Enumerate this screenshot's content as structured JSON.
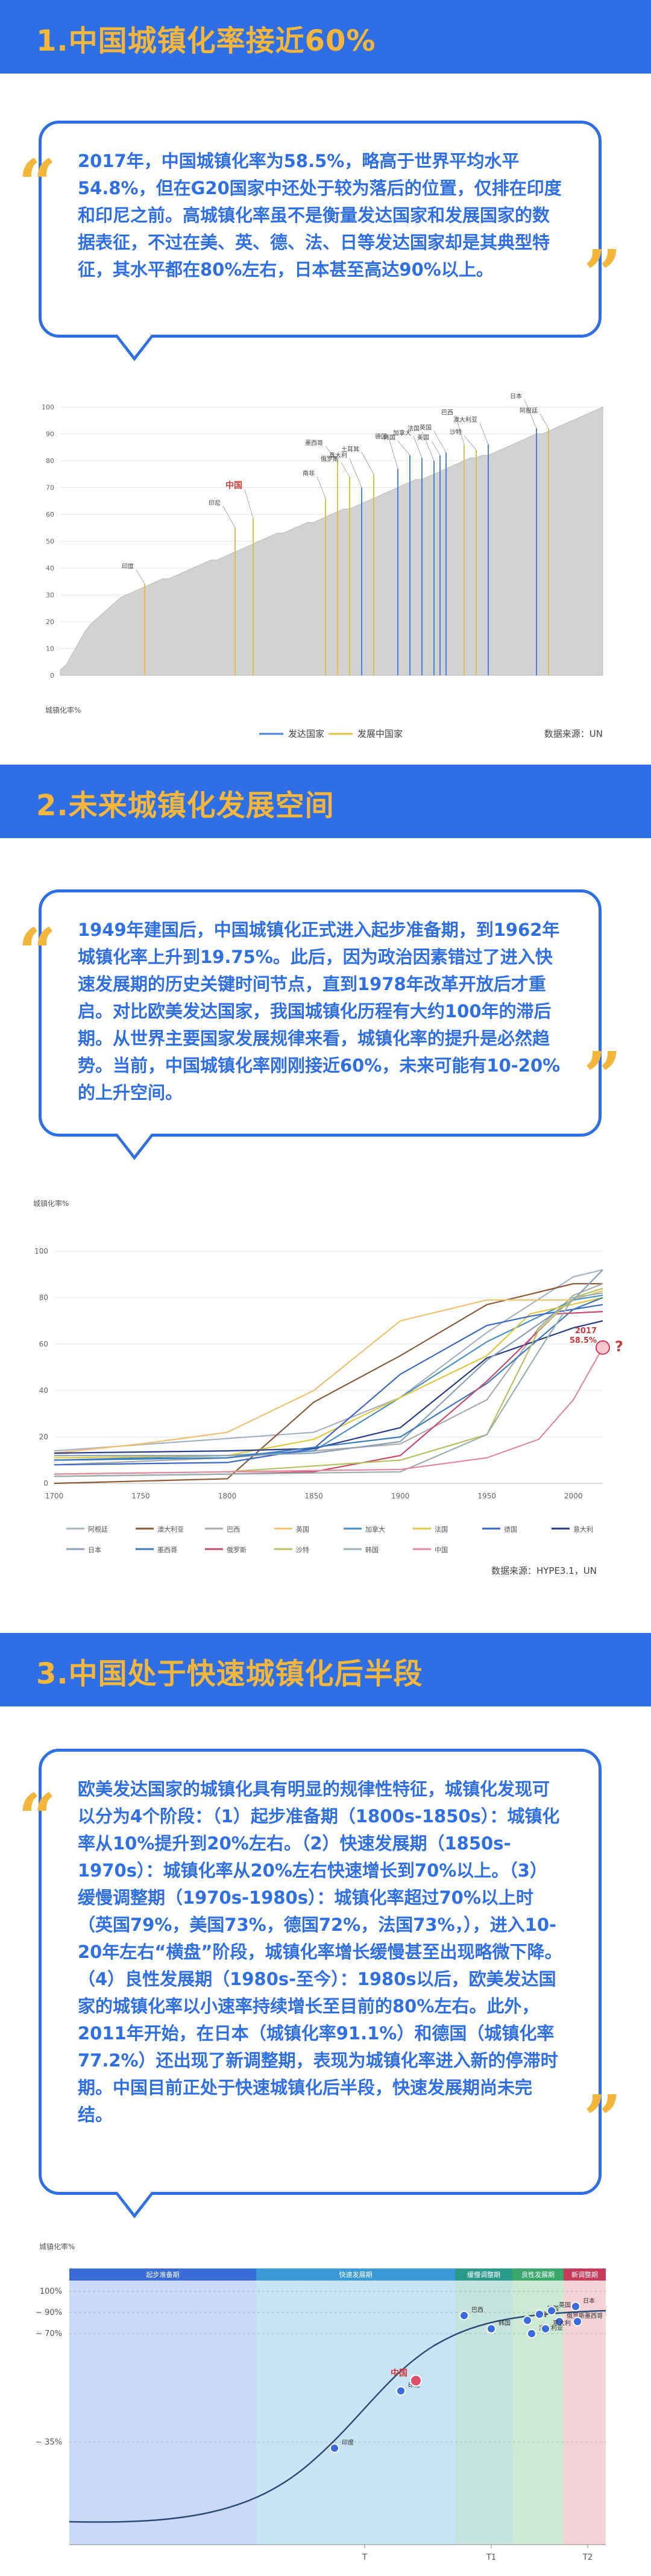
{
  "section1": {
    "title": "1.中国城镇化率接近60%",
    "text": "2017年，中国城镇化率为58.5%，略高于世界平均水平54.8%，但在G20国家中还处于较为落后的位置，仅排在印度和印尼之前。高城镇化率虽不是衡量发达国家和发展国家的数据表征，不过在美、英、德、法、日等发达国家却是其典型特征，其水平都在80%左右，日本甚至高达90%以上。",
    "quote_open": "“",
    "quote_close": "”"
  },
  "section2": {
    "title": "2.未来城镇化发展空间",
    "text": "1949年建国后，中国城镇化正式进入起步准备期，到1962年城镇化率上升到19.75%。此后，因为政治因素错过了进入快速发展期的历史关键时间节点，直到1978年改革开放后才重启。对比欧美发达国家，我国城镇化历程有大约100年的滞后期。从世界主要国家发展规律来看，城镇化率的提升是必然趋势。当前，中国城镇化率刚刚接近60%，未来可能有10-20%的上升空间。",
    "quote_open": "“",
    "quote_close": "”"
  },
  "section3": {
    "title": "3.中国处于快速城镇化后半段",
    "text": "欧美发达国家的城镇化具有明显的规律性特征，城镇化发现可以分为4个阶段：（1）起步准备期（1800s-1850s）：城镇化率从10%提升到20%左右。（2）快速发展期（1850s-1970s）：城镇化率从20%左右快速增长到70%以上。（3）缓慢调整期（1970s-1980s）：城镇化率超过70%以上时（英国79%，美国73%，德国72%，法国73%，），进入10-20年左右“横盘”阶段，城镇化率增长缓慢甚至出现略微下降。（4）良性发展期（1980s-至今）：1980s以后，欧美发达国家的城镇化率以小速率持续增长至目前的80%左右。此外，2011年开始，在日本（城镇化率91.1%）和德国（城镇化率77.2%）还出现了新调整期，表现为城镇化率进入新的停滞时期。中国目前正处于快速城镇化后半段，快速发展期尚未完结。",
    "quote_open": "“",
    "quote_close": "”"
  },
  "chart_data": [
    {
      "type": "area",
      "ylabel": "城镇化率%",
      "ylim": [
        0,
        100
      ],
      "yticks": [
        0,
        10,
        20,
        30,
        40,
        50,
        60,
        70,
        80,
        90,
        100
      ],
      "legend": [
        {
          "name": "发达国家",
          "color": "#4a7fe0"
        },
        {
          "name": "发展中国家",
          "color": "#e0c040"
        }
      ],
      "legend_position": "bottom",
      "source": "数据来源：UN",
      "profile_y": [
        2,
        4,
        8,
        12,
        16,
        19,
        21,
        23,
        25,
        27,
        29,
        30,
        31,
        32,
        33,
        34,
        35,
        36,
        36,
        37,
        38,
        39,
        40,
        41,
        42,
        43,
        43,
        44,
        45,
        46,
        47,
        48,
        49,
        50,
        51,
        52,
        53,
        53,
        54,
        55,
        56,
        57,
        57,
        58,
        59,
        60,
        61,
        62,
        62,
        63,
        64,
        65,
        66,
        67,
        68,
        69,
        70,
        71,
        72,
        73,
        73,
        74,
        75,
        76,
        77,
        78,
        79,
        80,
        81,
        81,
        82,
        82,
        83,
        84,
        85,
        86,
        87,
        88,
        89,
        90,
        90,
        91,
        92,
        93,
        94,
        95,
        96,
        97,
        98,
        99,
        100
      ],
      "highlighted": [
        {
          "label": "印度",
          "index": 14,
          "group": "developing",
          "value": 34
        },
        {
          "label": "印尼",
          "index": 29,
          "group": "developing",
          "value": 55
        },
        {
          "label": "中国",
          "index": 32,
          "group": "developing",
          "value": 58.5,
          "emphasis": true
        },
        {
          "label": "墨西哥",
          "index": 46,
          "group": "developing",
          "value": 80
        },
        {
          "label": "南非",
          "index": 44,
          "group": "developing",
          "value": 66
        },
        {
          "label": "意大利",
          "index": 50,
          "group": "developed",
          "value": 70
        },
        {
          "label": "俄罗斯",
          "index": 48,
          "group": "developing",
          "value": 74
        },
        {
          "label": "土耳其",
          "index": 52,
          "group": "developing",
          "value": 75
        },
        {
          "label": "德国",
          "index": 56,
          "group": "developed",
          "value": 77
        },
        {
          "label": "韩国",
          "index": 58,
          "group": "developed",
          "value": 82
        },
        {
          "label": "加拿大",
          "index": 60,
          "group": "developed",
          "value": 81
        },
        {
          "label": "法国",
          "index": 62,
          "group": "developed",
          "value": 80
        },
        {
          "label": "美国",
          "index": 63,
          "group": "developed",
          "value": 82
        },
        {
          "label": "英国",
          "index": 64,
          "group": "developed",
          "value": 83
        },
        {
          "label": "巴西",
          "index": 67,
          "group": "developing",
          "value": 86
        },
        {
          "label": "沙特",
          "index": 69,
          "group": "developing",
          "value": 84
        },
        {
          "label": "澳大利亚",
          "index": 71,
          "group": "developed",
          "value": 86
        },
        {
          "label": "日本",
          "index": 79,
          "group": "developed",
          "value": 92
        },
        {
          "label": "阿根廷",
          "index": 81,
          "group": "developing",
          "value": 92
        }
      ]
    },
    {
      "type": "line",
      "ylabel": "城镇化率%",
      "x": [
        1700,
        1750,
        1800,
        1850,
        1900,
        1950,
        2000
      ],
      "xlim": [
        1700,
        2017
      ],
      "ylim": [
        0,
        100
      ],
      "yticks": [
        0,
        20,
        40,
        60,
        80,
        100
      ],
      "annotation": {
        "year": "2017",
        "value": "58.5%",
        "mark": "?"
      },
      "source": "数据来源：HYPE3.1，UN",
      "legend_position": "bottom",
      "series": [
        {
          "name": "阿根廷",
          "color": "#a7b2c2",
          "points": [
            [
              1700,
              14
            ],
            [
              1850,
              22
            ],
            [
              1900,
              37
            ],
            [
              1950,
              65
            ],
            [
              2000,
              89
            ],
            [
              2017,
              92
            ]
          ]
        },
        {
          "name": "澳大利亚",
          "color": "#8a5a3a",
          "points": [
            [
              1700,
              0
            ],
            [
              1800,
              2
            ],
            [
              1850,
              35
            ],
            [
              1900,
              55
            ],
            [
              1950,
              77
            ],
            [
              2000,
              86
            ],
            [
              2017,
              86
            ]
          ]
        },
        {
          "name": "巴西",
          "color": "#aaaaaa",
          "points": [
            [
              1700,
              8
            ],
            [
              1800,
              11
            ],
            [
              1900,
              17
            ],
            [
              1950,
              36
            ],
            [
              1980,
              67
            ],
            [
              2000,
              81
            ],
            [
              2017,
              86
            ]
          ]
        },
        {
          "name": "英国",
          "color": "#f0c070",
          "points": [
            [
              1700,
              13
            ],
            [
              1750,
              17
            ],
            [
              1800,
              22
            ],
            [
              1850,
              40
            ],
            [
              1900,
              70
            ],
            [
              1950,
              79
            ],
            [
              2000,
              79
            ],
            [
              2017,
              83
            ]
          ]
        },
        {
          "name": "加拿大",
          "color": "#4a90c8",
          "points": [
            [
              1700,
              10
            ],
            [
              1800,
              12
            ],
            [
              1850,
              14
            ],
            [
              1900,
              37
            ],
            [
              1950,
              61
            ],
            [
              2000,
              79
            ],
            [
              2017,
              81
            ]
          ]
        },
        {
          "name": "法国",
          "color": "#e0c840",
          "points": [
            [
              1700,
              11
            ],
            [
              1800,
              12
            ],
            [
              1850,
              19
            ],
            [
              1900,
              37
            ],
            [
              1950,
              55
            ],
            [
              1975,
              73
            ],
            [
              2017,
              80
            ]
          ]
        },
        {
          "name": "德国",
          "color": "#3a66c8",
          "points": [
            [
              1700,
              8
            ],
            [
              1800,
              9
            ],
            [
              1850,
              15
            ],
            [
              1900,
              47
            ],
            [
              1950,
              68
            ],
            [
              1975,
              72
            ],
            [
              2017,
              77
            ]
          ]
        },
        {
          "name": "意大利",
          "color": "#2a3a8a",
          "points": [
            [
              1700,
              13
            ],
            [
              1800,
              14
            ],
            [
              1850,
              15
            ],
            [
              1900,
              24
            ],
            [
              1950,
              54
            ],
            [
              2000,
              67
            ],
            [
              2017,
              70
            ]
          ]
        },
        {
          "name": "日本",
          "color": "#8aa0b8",
          "points": [
            [
              1700,
              12
            ],
            [
              1800,
              12
            ],
            [
              1850,
              13
            ],
            [
              1900,
              18
            ],
            [
              1950,
              53
            ],
            [
              2000,
              79
            ],
            [
              2017,
              92
            ]
          ]
        },
        {
          "name": "墨西哥",
          "color": "#3a7ac0",
          "points": [
            [
              1700,
              10
            ],
            [
              1800,
              11
            ],
            [
              1900,
              20
            ],
            [
              1950,
              43
            ],
            [
              2000,
              75
            ],
            [
              2017,
              80
            ]
          ]
        },
        {
          "name": "俄罗斯",
          "color": "#c84a6a",
          "points": [
            [
              1700,
              3
            ],
            [
              1800,
              4
            ],
            [
              1850,
              5
            ],
            [
              1900,
              12
            ],
            [
              1950,
              44
            ],
            [
              1990,
              73
            ],
            [
              2017,
              74
            ]
          ]
        },
        {
          "name": "沙特",
          "color": "#b8c060",
          "points": [
            [
              1700,
              4
            ],
            [
              1800,
              5
            ],
            [
              1900,
              10
            ],
            [
              1950,
              21
            ],
            [
              1980,
              66
            ],
            [
              2000,
              80
            ],
            [
              2017,
              84
            ]
          ]
        },
        {
          "name": "韩国",
          "color": "#9ab0b0",
          "points": [
            [
              1700,
              3
            ],
            [
              1800,
              4
            ],
            [
              1900,
              5
            ],
            [
              1950,
              21
            ],
            [
              1980,
              57
            ],
            [
              2000,
              80
            ],
            [
              2017,
              82
            ]
          ]
        },
        {
          "name": "中国",
          "color": "#e08aa0",
          "points": [
            [
              1700,
              4
            ],
            [
              1800,
              5
            ],
            [
              1900,
              6
            ],
            [
              1950,
              11
            ],
            [
              1980,
              19
            ],
            [
              2000,
              36
            ],
            [
              2017,
              58.5
            ]
          ]
        }
      ]
    },
    {
      "type": "line",
      "ylabel": "城镇化率%",
      "stages": [
        "起步准备期",
        "快速发展期",
        "缓慢调整期",
        "良性发展期",
        "新调整期"
      ],
      "stage_colors": [
        "#3a6cd8",
        "#3a9ad8",
        "#2a9a8a",
        "#3aa86a",
        "#c83a5a"
      ],
      "yticks": [
        "100%",
        "~ 90%",
        "~ 70%",
        "~ 35%"
      ],
      "xticks": [
        "T",
        "T1",
        "T2"
      ],
      "labels": [
        "印度",
        "印尼",
        "中国",
        "巴西",
        "韩国",
        "法国",
        "美国",
        "英国",
        "俄罗斯",
        "澳大利亚",
        "意大利",
        "日本",
        "墨西哥"
      ]
    }
  ]
}
